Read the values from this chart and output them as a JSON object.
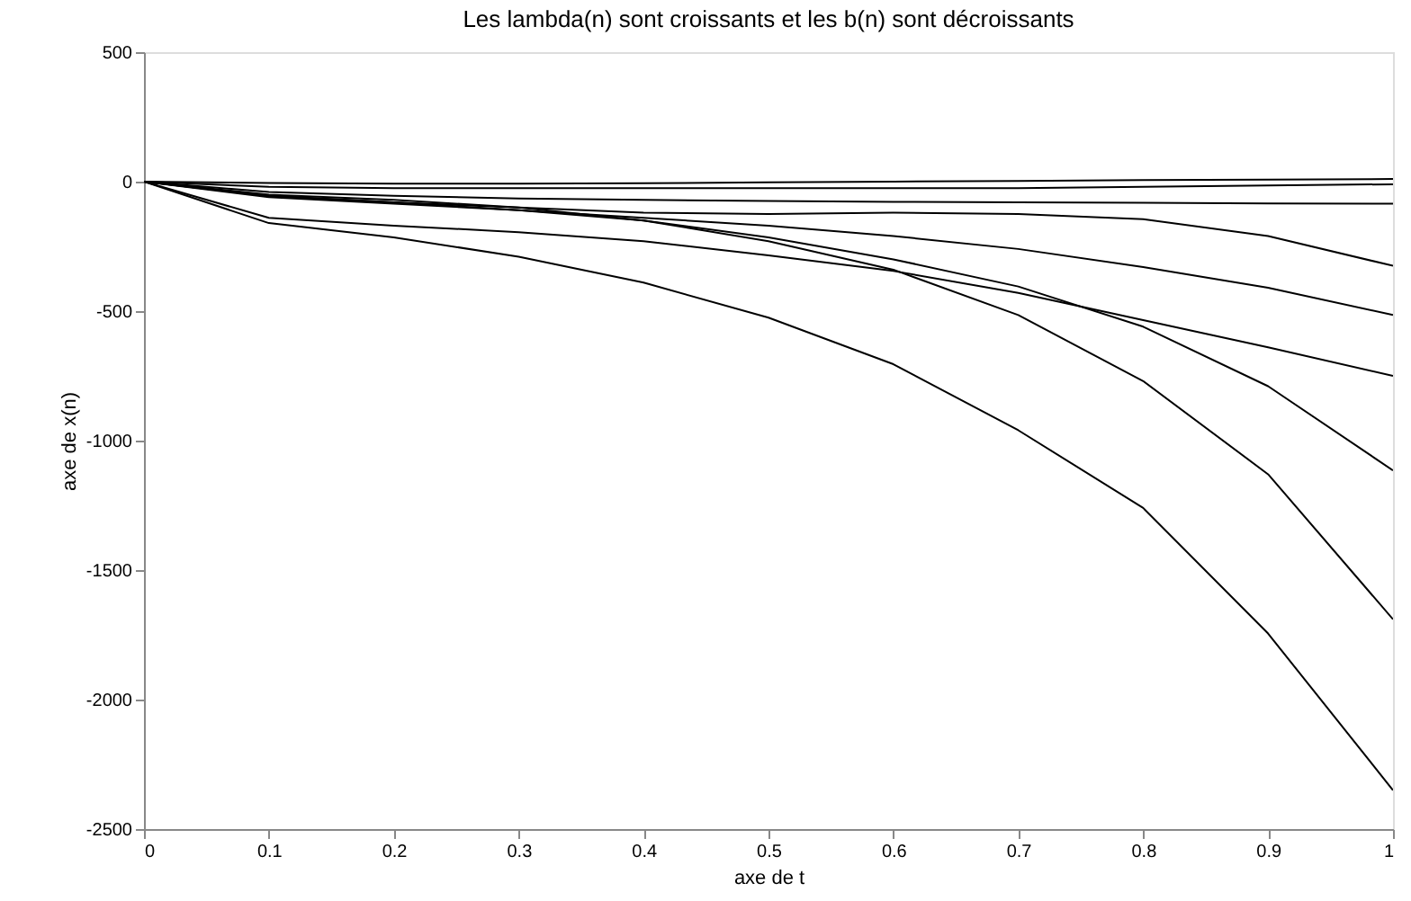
{
  "chart_data": {
    "type": "line",
    "title": "Les lambda(n) sont croissants et les b(n) sont décroissants",
    "xlabel": "axe de t",
    "ylabel": "axe de x(n)",
    "x": [
      0,
      0.1,
      0.2,
      0.3,
      0.4,
      0.5,
      0.6,
      0.7,
      0.8,
      0.9,
      1
    ],
    "series": [
      {
        "color": "#000000",
        "values": [
          0,
          -160,
          -215,
          -290,
          -390,
          -525,
          -705,
          -960,
          -1260,
          -1745,
          -2350
        ]
      },
      {
        "color": "#000000",
        "values": [
          0,
          -50,
          -70,
          -100,
          -150,
          -230,
          -340,
          -515,
          -770,
          -1130,
          -1690
        ]
      },
      {
        "color": "#000000",
        "values": [
          0,
          -55,
          -80,
          -110,
          -150,
          -215,
          -300,
          -405,
          -560,
          -790,
          -1115
        ]
      },
      {
        "color": "#000000",
        "values": [
          0,
          -140,
          -170,
          -195,
          -230,
          -285,
          -345,
          -430,
          -535,
          -640,
          -750
        ]
      },
      {
        "color": "#000000",
        "values": [
          0,
          -60,
          -85,
          -110,
          -140,
          -170,
          -210,
          -260,
          -330,
          -410,
          -515
        ]
      },
      {
        "color": "#000000",
        "values": [
          0,
          -55,
          -80,
          -100,
          -120,
          -125,
          -120,
          -125,
          -145,
          -210,
          -325
        ]
      },
      {
        "color": "#000000",
        "values": [
          0,
          -40,
          -55,
          -65,
          -70,
          -75,
          -78,
          -80,
          -82,
          -84,
          -85
        ]
      },
      {
        "color": "#000000",
        "values": [
          0,
          -20,
          -25,
          -25,
          -25,
          -25,
          -25,
          -25,
          -20,
          -15,
          -10
        ]
      },
      {
        "color": "#000000",
        "values": [
          0,
          -5,
          -8,
          -8,
          -6,
          -3,
          0,
          3,
          6,
          8,
          10
        ]
      }
    ],
    "xlim": [
      0,
      1
    ],
    "xticks": [
      0,
      0.1,
      0.2,
      0.3,
      0.4,
      0.5,
      0.6,
      0.7,
      0.8,
      0.9,
      1
    ],
    "ylim": [
      -2500,
      500
    ],
    "yticks": [
      -2500,
      -2000,
      -1500,
      -1000,
      -500,
      0,
      500
    ],
    "grid": false,
    "legend": false,
    "line_style": "solid",
    "marker": "none"
  }
}
